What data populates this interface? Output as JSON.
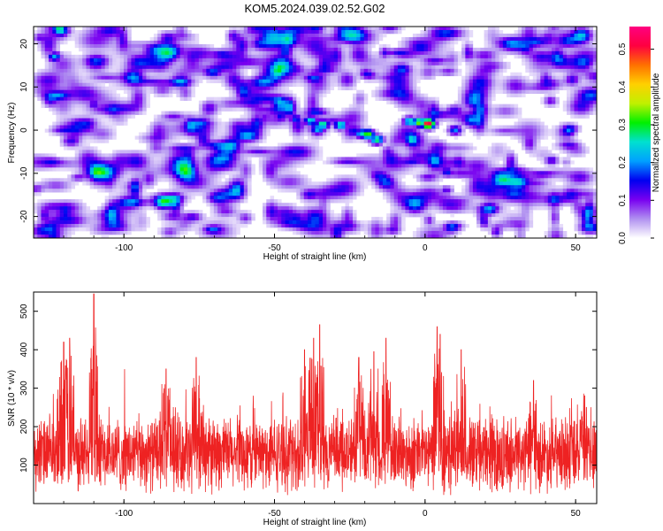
{
  "title": "KOM5.2024.039.02.52.G02",
  "chart_data": [
    {
      "type": "heatmap",
      "xlabel": "Height of straight line (km)",
      "ylabel": "Frequency (Hz)",
      "xlim": [
        -130,
        57
      ],
      "ylim": [
        -25,
        24
      ],
      "xticks": [
        -100,
        -50,
        0,
        50
      ],
      "yticks": [
        -20,
        -10,
        0,
        10,
        20
      ],
      "colorbar": {
        "label": "Normalized spectral amplitude",
        "range": [
          0.0,
          0.56
        ],
        "ticks": [
          0.0,
          0.1,
          0.2,
          0.3,
          0.4,
          0.5
        ],
        "colormap": [
          "#ffffff",
          "#b090f0",
          "#7800f0",
          "#0000f0",
          "#00a0ff",
          "#00e0d0",
          "#00f000",
          "#c0f000",
          "#ffd000",
          "#ff7000",
          "#ff0040",
          "#ff0080"
        ]
      },
      "background_level": 0.05,
      "hotspots": [
        {
          "x": 1,
          "y": 1.5,
          "value": 0.55
        },
        {
          "x": -2,
          "y": 1.8,
          "value": 0.35
        },
        {
          "x": -5,
          "y": 2.0,
          "value": 0.28
        },
        {
          "x": -19,
          "y": -1.0,
          "value": 0.34
        },
        {
          "x": -16,
          "y": -2.2,
          "value": 0.3
        },
        {
          "x": -21,
          "y": -0.8,
          "value": 0.26
        },
        {
          "x": -28,
          "y": 1.2,
          "value": 0.28
        },
        {
          "x": -34,
          "y": 1.3,
          "value": 0.3
        },
        {
          "x": -38,
          "y": 2.2,
          "value": 0.26
        },
        {
          "x": -43,
          "y": 2.6,
          "value": 0.18
        },
        {
          "x": -48,
          "y": 3.0,
          "value": 0.16
        },
        {
          "x": -53,
          "y": 2.8,
          "value": 0.12
        },
        {
          "x": 10,
          "y": 0.0,
          "value": 0.2
        },
        {
          "x": -62,
          "y": 0.0,
          "value": 0.12
        },
        {
          "x": -123,
          "y": 17.0,
          "value": 0.22
        },
        {
          "x": -110,
          "y": 6.0,
          "value": 0.14
        },
        {
          "x": 42,
          "y": -7.0,
          "value": 0.14
        },
        {
          "x": 7,
          "y": -14.0,
          "value": 0.12
        }
      ]
    },
    {
      "type": "line",
      "xlabel": "Height of straight line (km)",
      "ylabel": "SNR (10 * v/v)",
      "xlim": [
        -130,
        57
      ],
      "ylim": [
        0,
        550
      ],
      "xticks": [
        -100,
        -50,
        0,
        50
      ],
      "yticks": [
        100,
        200,
        300,
        400,
        500
      ],
      "series": [
        {
          "color": "#ee2222",
          "baseline": 120,
          "noise_amplitude": 140,
          "peaks": [
            {
              "x": -110,
              "y": 545
            },
            {
              "x": -118,
              "y": 430
            },
            {
              "x": -120,
              "y": 420
            },
            {
              "x": -35,
              "y": 465
            },
            {
              "x": -37,
              "y": 430
            },
            {
              "x": -13,
              "y": 430
            },
            {
              "x": -22,
              "y": 380
            },
            {
              "x": -17,
              "y": 395
            },
            {
              "x": 4,
              "y": 460
            },
            {
              "x": 5,
              "y": 440
            },
            {
              "x": 12,
              "y": 400
            },
            {
              "x": -76,
              "y": 380
            },
            {
              "x": -86,
              "y": 350
            },
            {
              "x": -40,
              "y": 400
            },
            {
              "x": 36,
              "y": 320
            },
            {
              "x": 53,
              "y": 280
            }
          ]
        }
      ]
    }
  ]
}
